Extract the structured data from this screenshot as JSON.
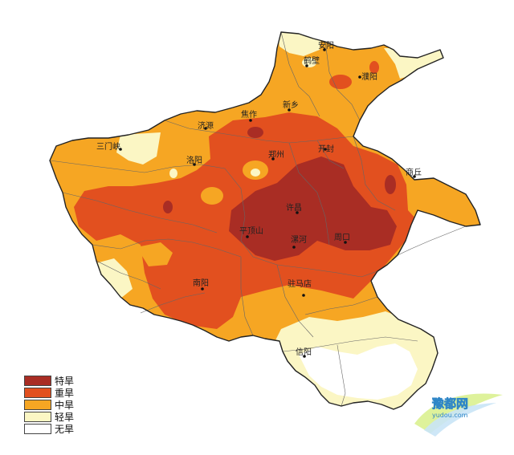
{
  "map": {
    "colors": {
      "extreme": "#a92d24",
      "severe": "#e2501f",
      "moderate": "#f6a623",
      "light": "#fbf6c4",
      "none": "#ffffff"
    },
    "cities": {
      "anyang": "安阳",
      "hebi": "鹤壁",
      "puyang": "濮阳",
      "xinxiang": "新乡",
      "jiaozuo": "焦作",
      "jiyuan": "济源",
      "sanmenxia": "三门峡",
      "luoyang": "洛阳",
      "zhengzhou": "郑州",
      "kaifeng": "开封",
      "shangqiu": "商丘",
      "xuchang": "许昌",
      "pingdingshan": "平顶山",
      "luohe": "漯河",
      "zhoukou": "周口",
      "nanyang": "南阳",
      "zhumadian": "驻马店",
      "xinyang": "信阳"
    }
  },
  "legend": {
    "items": [
      {
        "label": "特旱",
        "color": "#a92d24"
      },
      {
        "label": "重旱",
        "color": "#e2501f"
      },
      {
        "label": "中旱",
        "color": "#f6a623"
      },
      {
        "label": "轻旱",
        "color": "#fbf6c4"
      },
      {
        "label": "无旱",
        "color": "#ffffff"
      }
    ]
  },
  "watermark": {
    "text": "豫都网",
    "url": "yudou.com"
  }
}
